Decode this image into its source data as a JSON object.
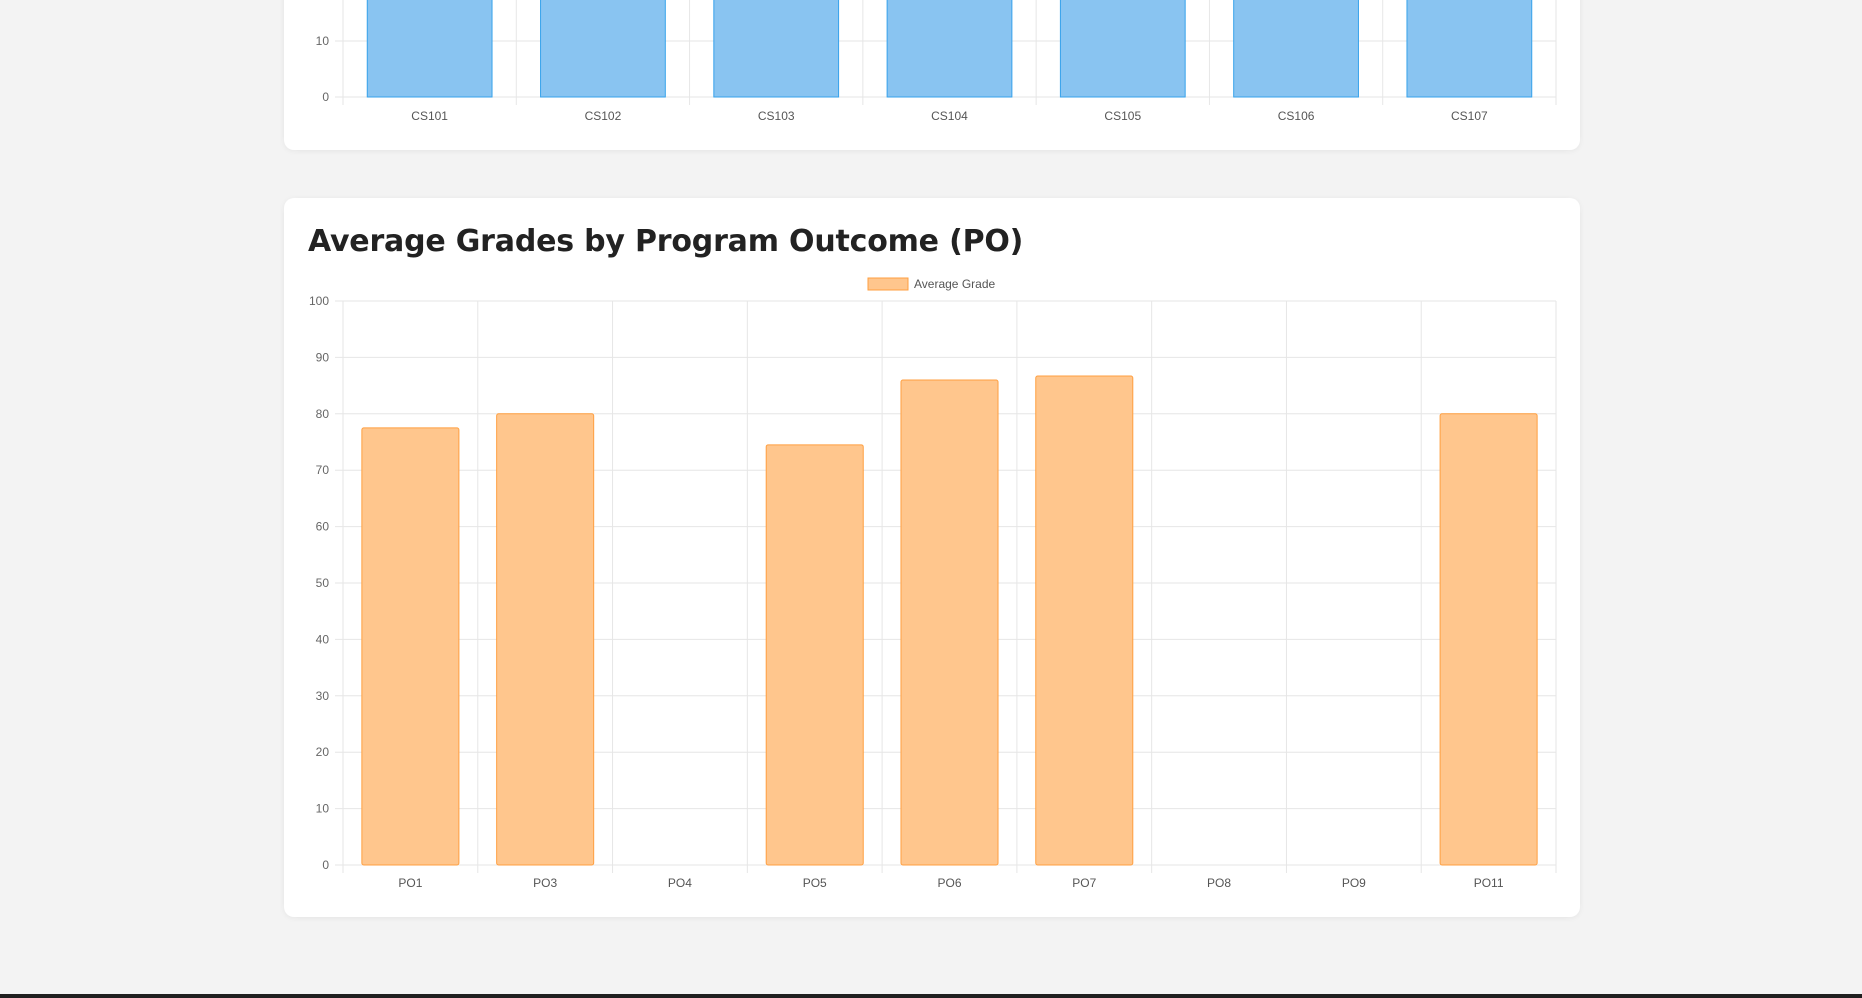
{
  "chart_data": [
    {
      "type": "bar",
      "title": "",
      "categories": [
        "CS101",
        "CS102",
        "CS103",
        "CS104",
        "CS105",
        "CS106",
        "CS107"
      ],
      "series": [
        {
          "values": [
            null,
            null,
            null,
            null,
            null,
            null,
            null
          ]
        }
      ],
      "yticks": [
        0,
        10
      ],
      "xlabel": "",
      "ylabel": "",
      "grid": true,
      "color": "#89c4f1",
      "border_color": "#36a2eb",
      "note": "cropped at top; bar values exceed visible range (>= 10)"
    },
    {
      "type": "bar",
      "title": "Average Grades by Program Outcome (PO)",
      "categories": [
        "PO1",
        "PO3",
        "PO4",
        "PO5",
        "PO6",
        "PO7",
        "PO8",
        "PO9",
        "PO11"
      ],
      "series": [
        {
          "name": "Average Grade",
          "values": [
            77.5,
            80,
            0,
            74.5,
            86,
            86.7,
            0,
            0,
            80
          ]
        }
      ],
      "ylim": [
        0,
        100
      ],
      "yticks": [
        0,
        10,
        20,
        30,
        40,
        50,
        60,
        70,
        80,
        90,
        100
      ],
      "xlabel": "",
      "ylabel": "",
      "grid": true,
      "legend_position": "top",
      "color": "#ffc68d",
      "border_color": "#ff9f40"
    }
  ]
}
